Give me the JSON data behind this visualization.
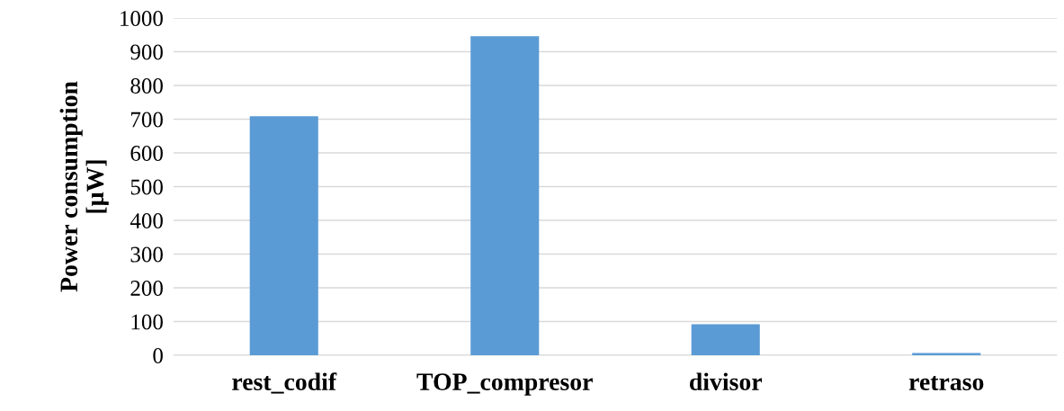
{
  "chart_data": {
    "type": "bar",
    "ylabel": "Power consumption\n[µW]",
    "categories": [
      "rest_codif",
      "TOP_compresor",
      "divisor",
      "retraso"
    ],
    "values": [
      709,
      946,
      92,
      7
    ],
    "color": "#5b9bd5",
    "ylim": [
      0,
      1000
    ],
    "yticks": [
      0,
      100,
      200,
      300,
      400,
      500,
      600,
      700,
      800,
      900,
      1000
    ],
    "grid": "y"
  }
}
